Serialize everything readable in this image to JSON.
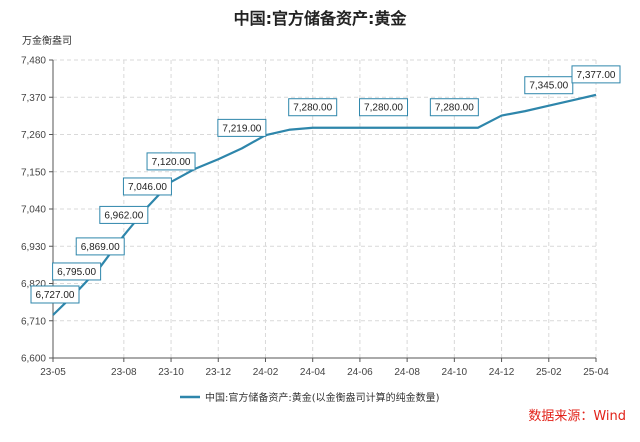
{
  "chart_data": {
    "type": "line",
    "title": "中国:官方储备资产:黄金",
    "unit": "万金衡盎司",
    "x": [
      "2023-05",
      "2023-06",
      "2023-07",
      "2023-08",
      "2023-09",
      "2023-10",
      "2023-11",
      "2023-12",
      "2024-01",
      "2024-02",
      "2024-03",
      "2024-04",
      "2024-05",
      "2024-06",
      "2024-07",
      "2024-08",
      "2024-09",
      "2024-10",
      "2024-11",
      "2024-12",
      "2025-01",
      "2025-02",
      "2025-03",
      "2025-04"
    ],
    "x_tick_labels": [
      "23-05",
      "23-08",
      "23-10",
      "23-12",
      "24-02",
      "24-04",
      "24-06",
      "24-08",
      "24-10",
      "24-12",
      "25-02",
      "25-04"
    ],
    "x_tick_positions": [
      0,
      3,
      5,
      7,
      9,
      11,
      13,
      15,
      17,
      19,
      21,
      23
    ],
    "ylim": [
      6600,
      7480
    ],
    "y_ticks": [
      6600,
      6710,
      6820,
      6930,
      7040,
      7150,
      7260,
      7370,
      7480
    ],
    "y_tick_labels": [
      "6,600",
      "6,710",
      "6,820",
      "6,930",
      "7,040",
      "7,150",
      "7,260",
      "7,370",
      "7,480"
    ],
    "series": [
      {
        "name": "中国:官方储备资产:黄金(以金衡盎司计算的纯金数量)",
        "color": "#2e86ab",
        "values": [
          6727,
          6795,
          6869,
          6962,
          7046,
          7120,
          7158,
          7187,
          7219,
          7258,
          7274,
          7280,
          7280,
          7280,
          7280,
          7280,
          7280,
          7280,
          7280,
          7316,
          7329,
          7345,
          7361,
          7377
        ]
      }
    ],
    "data_labels": [
      {
        "index": 0,
        "text": "6,727.00"
      },
      {
        "index": 1,
        "text": "6,795.00"
      },
      {
        "index": 2,
        "text": "6,869.00"
      },
      {
        "index": 3,
        "text": "6,962.00"
      },
      {
        "index": 4,
        "text": "7,046.00"
      },
      {
        "index": 5,
        "text": "7,120.00"
      },
      {
        "index": 8,
        "text": "7,219.00"
      },
      {
        "index": 11,
        "text": "7,280.00"
      },
      {
        "index": 14,
        "text": "7,280.00"
      },
      {
        "index": 17,
        "text": "7,280.00"
      },
      {
        "index": 21,
        "text": "7,345.00"
      },
      {
        "index": 23,
        "text": "7,377.00"
      }
    ],
    "grid": true,
    "legend_position": "bottom"
  },
  "source": "数据来源：Wind"
}
